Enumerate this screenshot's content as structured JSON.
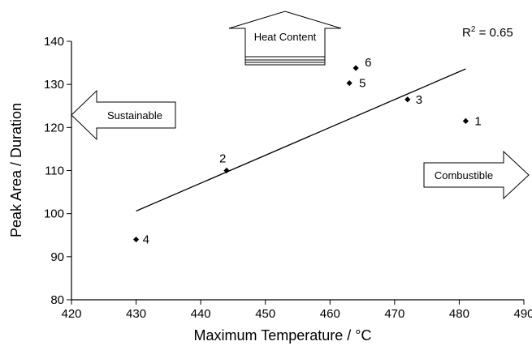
{
  "chart_data": {
    "type": "scatter",
    "xlabel": "Maximum Temperature / °C",
    "ylabel": "Peak Area / Duration",
    "xlim": [
      420,
      490
    ],
    "ylim": [
      80,
      140
    ],
    "xticks": [
      420,
      430,
      440,
      450,
      460,
      470,
      480,
      490
    ],
    "yticks": [
      80,
      90,
      100,
      110,
      120,
      130,
      140
    ],
    "grid": false,
    "points": [
      {
        "label": "1",
        "x": 481,
        "y": 121.5
      },
      {
        "label": "2",
        "x": 444,
        "y": 110
      },
      {
        "label": "3",
        "x": 472,
        "y": 126.5
      },
      {
        "label": "4",
        "x": 430,
        "y": 94
      },
      {
        "label": "5",
        "x": 463,
        "y": 130.3
      },
      {
        "label": "6",
        "x": 464,
        "y": 133.8
      }
    ],
    "trendline": {
      "x": [
        430,
        481
      ],
      "y": [
        100.6,
        133.6
      ]
    },
    "r_squared": {
      "prefix": "R",
      "superscript": "2",
      "value": " = 0.65"
    },
    "annotations": [
      {
        "text": "Heat Content",
        "direction": "up"
      },
      {
        "text": "Sustainable",
        "direction": "left"
      },
      {
        "text": "Combustible",
        "direction": "right"
      }
    ]
  }
}
